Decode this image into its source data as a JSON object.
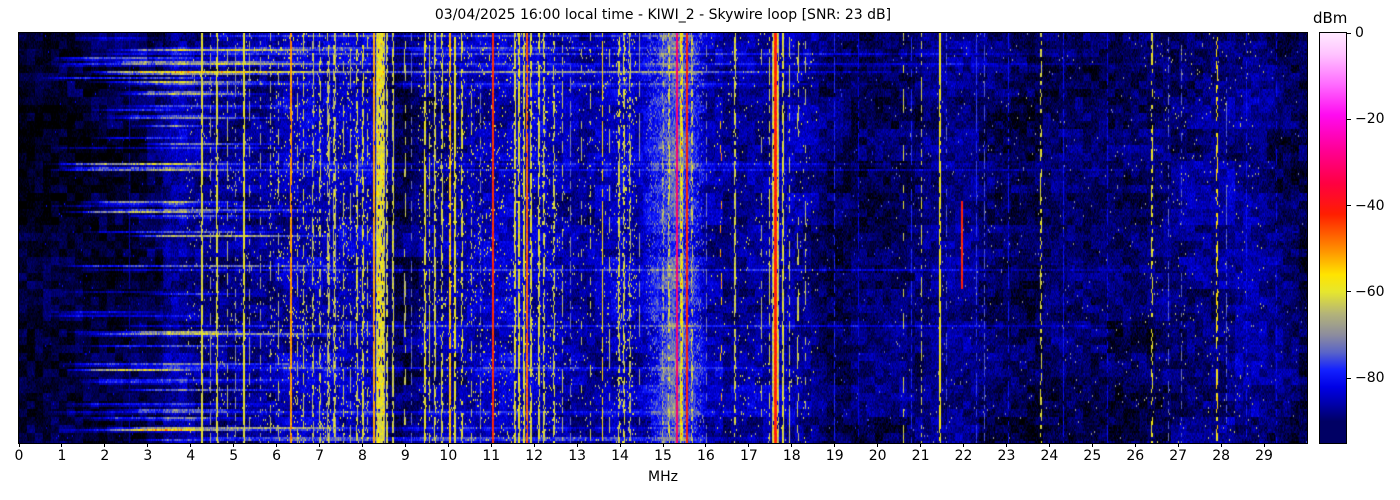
{
  "figure": {
    "title": "03/04/2025 16:00 local time - KIWI_2 - Skywire loop [SNR: 23 dB]",
    "background": "#ffffff"
  },
  "xaxis": {
    "label": "MHz",
    "range_mhz": [
      0,
      30
    ],
    "ticks": [
      "0",
      "1",
      "2",
      "3",
      "4",
      "5",
      "6",
      "7",
      "8",
      "9",
      "10",
      "11",
      "12",
      "13",
      "14",
      "15",
      "16",
      "17",
      "18",
      "19",
      "20",
      "21",
      "22",
      "23",
      "24",
      "25",
      "26",
      "27",
      "28",
      "29"
    ],
    "tick_values": [
      0,
      1,
      2,
      3,
      4,
      5,
      6,
      7,
      8,
      9,
      10,
      11,
      12,
      13,
      14,
      15,
      16,
      17,
      18,
      19,
      20,
      21,
      22,
      23,
      24,
      25,
      26,
      27,
      28,
      29
    ]
  },
  "colorbar": {
    "label": "dBm",
    "ticks": [
      "0",
      "−20",
      "−40",
      "−60",
      "−80"
    ],
    "tick_values": [
      0,
      -20,
      -40,
      -60,
      -80
    ],
    "range_dbm": [
      -95,
      0
    ]
  },
  "chart_data": {
    "type": "heatmap",
    "subtype": "radio-spectrogram-waterfall",
    "title": "03/04/2025 16:00 local time - KIWI_2 - Skywire loop [SNR: 23 dB]",
    "xlabel": "MHz",
    "x_range_mhz": [
      0,
      30
    ],
    "value_range_dbm": [
      -95,
      0
    ],
    "colorbar_label": "dBm",
    "grid": false,
    "colormap_stops": [
      [
        0,
        "#ffeaff"
      ],
      [
        -5,
        "#ffc2ff"
      ],
      [
        -12,
        "#ff6aff"
      ],
      [
        -19,
        "#ff0af0"
      ],
      [
        -27,
        "#ff0096"
      ],
      [
        -35,
        "#ff0040"
      ],
      [
        -42,
        "#ff1e00"
      ],
      [
        -50,
        "#ff8c00"
      ],
      [
        -56,
        "#ffe400"
      ],
      [
        -60,
        "#e6e62e"
      ],
      [
        -65,
        "#b4b478"
      ],
      [
        -70,
        "#8c8c9e"
      ],
      [
        -74,
        "#5a64c8"
      ],
      [
        -78,
        "#1422ff"
      ],
      [
        -82,
        "#0000e6"
      ],
      [
        -86,
        "#0000aa"
      ],
      [
        -90,
        "#000064"
      ],
      [
        -96,
        "#000000"
      ]
    ],
    "noise_floor_dbm": [
      [
        0,
        -93.5
      ],
      [
        1.2,
        -93
      ],
      [
        2.4,
        -92.5
      ],
      [
        3.25,
        -91
      ],
      [
        3.45,
        -87
      ],
      [
        3.8,
        -85.5
      ],
      [
        4.15,
        -88
      ],
      [
        5,
        -88
      ],
      [
        5.8,
        -87
      ],
      [
        6.3,
        -85.5
      ],
      [
        7.0,
        -85
      ],
      [
        8.1,
        -85
      ],
      [
        8.35,
        -84
      ],
      [
        8.6,
        -90
      ],
      [
        9.0,
        -91
      ],
      [
        9.35,
        -88.5
      ],
      [
        9.9,
        -87
      ],
      [
        10.6,
        -86
      ],
      [
        11.3,
        -84.5
      ],
      [
        12.1,
        -84.5
      ],
      [
        12.6,
        -86
      ],
      [
        13.2,
        -87.5
      ],
      [
        13.95,
        -84.5
      ],
      [
        14.4,
        -86.5
      ],
      [
        14.8,
        -81
      ],
      [
        15.3,
        -74
      ],
      [
        15.7,
        -80
      ],
      [
        16.05,
        -87
      ],
      [
        16.6,
        -86.5
      ],
      [
        17.3,
        -85.5
      ],
      [
        17.9,
        -85
      ],
      [
        18.45,
        -87.5
      ],
      [
        18.9,
        -90.5
      ],
      [
        19.8,
        -91
      ],
      [
        20.9,
        -90
      ],
      [
        21.5,
        -88.5
      ],
      [
        22.1,
        -88.5
      ],
      [
        22.8,
        -89.5
      ],
      [
        23.6,
        -91
      ],
      [
        24.6,
        -90
      ],
      [
        25.6,
        -90.5
      ],
      [
        26.5,
        -89.5
      ],
      [
        27.3,
        -88.5
      ],
      [
        28.1,
        -87.5
      ],
      [
        28.9,
        -87.5
      ],
      [
        29.5,
        -90
      ],
      [
        30,
        -91.5
      ]
    ],
    "speckle_regions": [
      [
        0.6,
        3.3,
        0.004,
        -82,
        3
      ],
      [
        3.9,
        5.8,
        0.02,
        -66,
        4
      ],
      [
        5.8,
        8.2,
        0.05,
        -62,
        3.5
      ],
      [
        9.3,
        10.5,
        0.045,
        -62,
        3
      ],
      [
        10.5,
        12.6,
        0.05,
        -61,
        3.5
      ],
      [
        12.6,
        13.9,
        0.022,
        -64,
        3
      ],
      [
        13.9,
        14.4,
        0.09,
        -62,
        4
      ],
      [
        14.6,
        15.95,
        0.1,
        -72,
        5
      ],
      [
        16.1,
        18.6,
        0.018,
        -64,
        4
      ],
      [
        18.7,
        20.4,
        0.006,
        -76,
        3
      ],
      [
        20.4,
        22.7,
        0.01,
        -70,
        4
      ],
      [
        22.7,
        26.2,
        0.006,
        -70,
        3
      ],
      [
        26.2,
        29.0,
        0.012,
        -66,
        3
      ],
      [
        29.0,
        30,
        0.004,
        -74,
        3
      ]
    ],
    "streaks": {
      "count": 70,
      "long_fraction": 0.28,
      "seed": 20250403,
      "row_count": 205,
      "extra": [
        {
          "r": 1,
          "f0": 4.0,
          "f1": 18.3,
          "a": 8
        },
        {
          "r": 202,
          "f0": 3.8,
          "f1": 18.5,
          "a": 10
        },
        {
          "r": 203,
          "f0": 3.8,
          "f1": 18.5,
          "a": 9
        }
      ]
    },
    "signals_schema": "f=MHz, w=width_px, l=level_dBm, d=duty_cycle, v=variance_dB, seg=[row_frac_start,row_frac_end], fl=fleck_probability",
    "signals": [
      {
        "f": 2.58,
        "w": 1,
        "l": -86,
        "d": 0.8,
        "v": 2
      },
      {
        "f": 4.27,
        "w": 2,
        "l": -61,
        "d": 0.92,
        "v": 2.5
      },
      {
        "f": 4.47,
        "w": 1,
        "l": -68,
        "d": 0.5,
        "v": 3
      },
      {
        "f": 4.62,
        "w": 2,
        "l": -61,
        "d": 0.85,
        "v": 2.5
      },
      {
        "f": 4.86,
        "w": 1,
        "l": -65,
        "d": 0.6,
        "v": 3
      },
      {
        "f": 5.05,
        "w": 1,
        "l": -70,
        "d": 0.5,
        "v": 3
      },
      {
        "f": 5.23,
        "w": 2,
        "l": -60,
        "d": 0.9,
        "v": 2.5
      },
      {
        "f": 5.38,
        "w": 1,
        "l": -67,
        "d": 0.5,
        "v": 3
      },
      {
        "f": 5.62,
        "w": 1,
        "l": -68,
        "d": 0.45,
        "v": 3
      },
      {
        "f": 5.85,
        "w": 1,
        "l": -66,
        "d": 0.5,
        "v": 3
      },
      {
        "f": 6.05,
        "w": 1,
        "l": -65,
        "d": 0.55,
        "v": 3
      },
      {
        "f": 6.33,
        "w": 2,
        "l": -51,
        "d": 0.95,
        "v": 3
      },
      {
        "f": 6.48,
        "w": 1,
        "l": -64,
        "d": 0.5,
        "v": 3
      },
      {
        "f": 6.62,
        "w": 1,
        "l": -62,
        "d": 0.6,
        "v": 3
      },
      {
        "f": 6.85,
        "w": 2,
        "l": -64,
        "d": 0.55,
        "v": 4
      },
      {
        "f": 7.0,
        "w": 2,
        "l": -63,
        "d": 0.5,
        "v": 4
      },
      {
        "f": 7.2,
        "w": 3,
        "l": -62,
        "d": 0.6,
        "v": 4
      },
      {
        "f": 7.35,
        "w": 3,
        "l": -61,
        "d": 0.65,
        "v": 4
      },
      {
        "f": 7.55,
        "w": 1,
        "l": -64,
        "d": 0.5,
        "v": 3
      },
      {
        "f": 7.72,
        "w": 1,
        "l": -66,
        "d": 0.4,
        "v": 3
      },
      {
        "f": 7.87,
        "w": 2,
        "l": -62,
        "d": 0.6,
        "v": 3
      },
      {
        "f": 8.02,
        "w": 2,
        "l": -61,
        "d": 0.65,
        "v": 3
      },
      {
        "f": 8.12,
        "w": 1,
        "l": -63,
        "d": 0.5,
        "v": 3
      },
      {
        "f": 8.27,
        "w": 2,
        "l": -52,
        "d": 0.97,
        "v": 2
      },
      {
        "f": 8.42,
        "w": 9,
        "l": -60,
        "d": 0.9,
        "v": 4,
        "fl": 0.08
      },
      {
        "f": 8.56,
        "w": 2,
        "l": -62,
        "d": 0.7,
        "v": 3
      },
      {
        "f": 8.7,
        "w": 2,
        "l": -62,
        "d": 0.8,
        "v": 3
      },
      {
        "f": 9.0,
        "w": 2,
        "l": -64,
        "d": 0.3,
        "v": 3
      },
      {
        "f": 9.15,
        "w": 1,
        "l": -73,
        "d": 0.5,
        "v": 3
      },
      {
        "f": 9.45,
        "w": 2,
        "l": -60,
        "d": 0.85,
        "v": 3
      },
      {
        "f": 9.57,
        "w": 1,
        "l": -62,
        "d": 0.7,
        "v": 3
      },
      {
        "f": 9.7,
        "w": 2,
        "l": -62,
        "d": 0.75,
        "v": 3
      },
      {
        "f": 9.85,
        "w": 2,
        "l": -62,
        "d": 0.7,
        "v": 3
      },
      {
        "f": 10.03,
        "w": 2,
        "l": -54,
        "d": 0.9,
        "v": 3
      },
      {
        "f": 10.16,
        "w": 2,
        "l": -60,
        "d": 0.8,
        "v": 3
      },
      {
        "f": 10.32,
        "w": 2,
        "l": -61,
        "d": 0.6,
        "v": 3
      },
      {
        "f": 10.55,
        "w": 1,
        "l": -64,
        "d": 0.5,
        "v": 3
      },
      {
        "f": 10.75,
        "w": 1,
        "l": -72,
        "d": 0.5,
        "v": 3
      },
      {
        "f": 11.03,
        "w": 2,
        "l": -43,
        "d": 1,
        "v": 2
      },
      {
        "f": 11.55,
        "w": 2,
        "l": -61,
        "d": 0.8,
        "v": 4
      },
      {
        "f": 11.65,
        "w": 2,
        "l": -60,
        "d": 0.85,
        "v": 4
      },
      {
        "f": 11.76,
        "w": 2,
        "l": -60,
        "d": 0.8,
        "v": 4
      },
      {
        "f": 11.84,
        "w": 2,
        "l": -47,
        "d": 0.95,
        "v": 3
      },
      {
        "f": 11.93,
        "w": 2,
        "l": -61,
        "d": 0.8,
        "v": 4
      },
      {
        "f": 12.12,
        "w": 2,
        "l": -61,
        "d": 0.75,
        "v": 3
      },
      {
        "f": 12.23,
        "w": 2,
        "l": -62,
        "d": 0.7,
        "v": 3
      },
      {
        "f": 12.45,
        "w": 2,
        "l": -62,
        "d": 0.55,
        "v": 3
      },
      {
        "f": 12.67,
        "w": 1,
        "l": -64,
        "d": 0.5,
        "v": 3
      },
      {
        "f": 12.85,
        "w": 1,
        "l": -72,
        "d": 0.5,
        "v": 3
      },
      {
        "f": 13.1,
        "w": 1,
        "l": -64,
        "d": 0.4,
        "v": 3
      },
      {
        "f": 13.32,
        "w": 1,
        "l": -63,
        "d": 0.45,
        "v": 3
      },
      {
        "f": 13.58,
        "w": 1,
        "l": -56,
        "d": 0.8,
        "v": 3
      },
      {
        "f": 13.75,
        "w": 1,
        "l": -64,
        "d": 0.4,
        "v": 3
      },
      {
        "f": 13.98,
        "w": 2,
        "l": -62,
        "d": 0.6,
        "v": 4
      },
      {
        "f": 14.1,
        "w": 2,
        "l": -62,
        "d": 0.6,
        "v": 4
      },
      {
        "f": 14.22,
        "w": 2,
        "l": -64,
        "d": 0.5,
        "v": 4
      },
      {
        "f": 14.45,
        "w": 1,
        "l": -68,
        "d": 0.4,
        "v": 4
      },
      {
        "f": 15.0,
        "w": 2,
        "l": -66,
        "d": 0.5,
        "v": 5
      },
      {
        "f": 15.15,
        "w": 2,
        "l": -62,
        "d": 0.6,
        "v": 5
      },
      {
        "f": 15.33,
        "w": 2,
        "l": -31,
        "d": 1,
        "v": 3
      },
      {
        "f": 15.43,
        "w": 3,
        "l": -57,
        "d": 0.8,
        "v": 5,
        "fl": 0.08
      },
      {
        "f": 15.56,
        "w": 2,
        "l": -41,
        "d": 1,
        "v": 2
      },
      {
        "f": 15.68,
        "w": 2,
        "l": -63,
        "d": 0.6,
        "v": 5
      },
      {
        "f": 16.02,
        "w": 1,
        "l": -72,
        "d": 0.5,
        "v": 3
      },
      {
        "f": 16.35,
        "w": 2,
        "l": -52,
        "d": 0.08,
        "v": 5
      },
      {
        "f": 16.68,
        "w": 2,
        "l": -62,
        "d": 0.75,
        "v": 3
      },
      {
        "f": 17.3,
        "w": 1,
        "l": -66,
        "d": 0.4,
        "v": 3
      },
      {
        "f": 17.48,
        "w": 1,
        "l": -62,
        "d": 0.7,
        "v": 3
      },
      {
        "f": 17.63,
        "w": 7,
        "l": -60,
        "d": 0.9,
        "v": 4
      },
      {
        "f": 17.63,
        "w": 3,
        "l": -39,
        "d": 1,
        "v": 2.5
      },
      {
        "f": 17.8,
        "w": 2,
        "l": -61,
        "d": 0.8,
        "v": 3
      },
      {
        "f": 17.95,
        "w": 1,
        "l": -63,
        "d": 0.6,
        "v": 3
      },
      {
        "f": 18.15,
        "w": 2,
        "l": -63,
        "d": 0.4,
        "v": 3
      },
      {
        "f": 18.32,
        "w": 1,
        "l": -65,
        "d": 0.3,
        "v": 3
      },
      {
        "f": 19.0,
        "w": 1,
        "l": -78,
        "d": 0.8,
        "v": 2
      },
      {
        "f": 19.55,
        "w": 1,
        "l": -82,
        "d": 0.7,
        "v": 2
      },
      {
        "f": 20.6,
        "w": 1,
        "l": -62,
        "d": 0.35,
        "v": 3
      },
      {
        "f": 20.78,
        "w": 1,
        "l": -78,
        "d": 0.7,
        "v": 2
      },
      {
        "f": 21.02,
        "w": 1,
        "l": -63,
        "d": 0.6,
        "v": 3
      },
      {
        "f": 21.45,
        "w": 2,
        "l": -59,
        "d": 0.85,
        "v": 3
      },
      {
        "f": 21.6,
        "w": 1,
        "l": -75,
        "d": 0.5,
        "v": 3
      },
      {
        "f": 21.96,
        "w": 2,
        "l": -42,
        "d": 1,
        "v": 3,
        "seg": [
          0.41,
          0.62
        ]
      },
      {
        "f": 22.3,
        "w": 1,
        "l": -77,
        "d": 0.8,
        "v": 2
      },
      {
        "f": 22.48,
        "w": 1,
        "l": -75,
        "d": 0.7,
        "v": 2
      },
      {
        "f": 23.05,
        "w": 1,
        "l": -80,
        "d": 0.6,
        "v": 2
      },
      {
        "f": 23.8,
        "w": 2,
        "l": -61,
        "d": 0.5,
        "v": 3
      },
      {
        "f": 24.32,
        "w": 1,
        "l": -80,
        "d": 0.8,
        "v": 2
      },
      {
        "f": 25.35,
        "w": 1,
        "l": -81,
        "d": 0.7,
        "v": 2
      },
      {
        "f": 26.4,
        "w": 2,
        "l": -60,
        "d": 0.5,
        "v": 3
      },
      {
        "f": 26.78,
        "w": 1,
        "l": -74,
        "d": 0.5,
        "v": 3
      },
      {
        "f": 27.08,
        "w": 1,
        "l": -74,
        "d": 0.45,
        "v": 3
      },
      {
        "f": 27.9,
        "w": 2,
        "l": -57,
        "d": 0.5,
        "v": 4
      },
      {
        "f": 28.12,
        "w": 1,
        "l": -74,
        "d": 0.6,
        "v": 3,
        "seg": [
          0.1,
          0.95
        ]
      },
      {
        "f": 28.6,
        "w": 1,
        "l": -80,
        "d": 0.6,
        "v": 2
      },
      {
        "f": 29.3,
        "w": 1,
        "l": -81,
        "d": 0.5,
        "v": 2
      }
    ]
  }
}
